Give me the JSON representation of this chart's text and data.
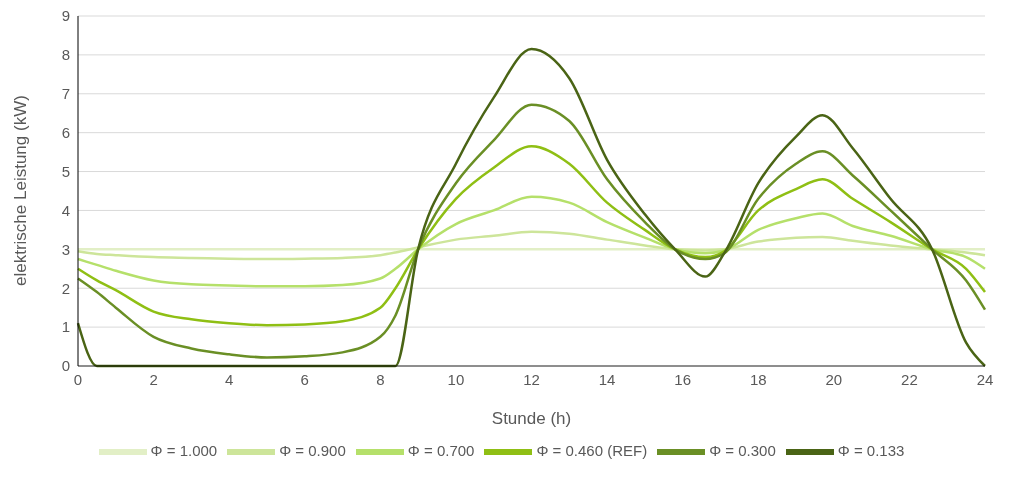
{
  "chart_data": {
    "type": "line",
    "xlabel": "Stunde (h)",
    "ylabel": "elektrische Leistung (kW)",
    "x": [
      0,
      0.5,
      1,
      2,
      3,
      4,
      5,
      6,
      7,
      8,
      8.4,
      9,
      10,
      11,
      12,
      13,
      14,
      15,
      15.8,
      16.6,
      17.1,
      18,
      19,
      19.7,
      20.5,
      21.5,
      22.6,
      23.5,
      24
    ],
    "xlim": [
      0,
      24
    ],
    "xticks": [
      0,
      2,
      4,
      6,
      8,
      10,
      12,
      14,
      16,
      18,
      20,
      22,
      24
    ],
    "ylim": [
      0,
      9
    ],
    "yticks": [
      0,
      1,
      2,
      3,
      4,
      5,
      6,
      7,
      8,
      9
    ],
    "grid": "y",
    "legend": "bottom",
    "marker": "none",
    "line_style": "solid",
    "series": [
      {
        "name": "Φ = 1.000",
        "color": "#e2efc6",
        "values": [
          3,
          3,
          3,
          3,
          3,
          3,
          3,
          3,
          3,
          3,
          3,
          3,
          3,
          3,
          3,
          3,
          3,
          3,
          3,
          3,
          3,
          3,
          3,
          3,
          3,
          3,
          3,
          3,
          3
        ]
      },
      {
        "name": "Φ = 0.900",
        "color": "#cde59a",
        "values": [
          2.95,
          2.88,
          2.85,
          2.8,
          2.78,
          2.76,
          2.75,
          2.76,
          2.78,
          2.85,
          2.92,
          3.05,
          3.25,
          3.35,
          3.45,
          3.4,
          3.25,
          3.1,
          3.0,
          2.97,
          3.0,
          3.2,
          3.3,
          3.32,
          3.22,
          3.1,
          3.0,
          2.92,
          2.85
        ]
      },
      {
        "name": "Φ = 0.700",
        "color": "#b5e06a",
        "values": [
          2.75,
          2.6,
          2.45,
          2.2,
          2.1,
          2.07,
          2.05,
          2.05,
          2.08,
          2.25,
          2.5,
          3.0,
          3.65,
          4.0,
          4.35,
          4.2,
          3.7,
          3.3,
          3.0,
          2.9,
          2.97,
          3.5,
          3.8,
          3.92,
          3.6,
          3.35,
          3.0,
          2.8,
          2.5
        ]
      },
      {
        "name": "Φ = 0.460 (REF)",
        "color": "#8fbf14",
        "values": [
          2.5,
          2.2,
          1.95,
          1.4,
          1.2,
          1.1,
          1.05,
          1.07,
          1.15,
          1.5,
          2.0,
          3.0,
          4.3,
          5.1,
          5.65,
          5.2,
          4.2,
          3.5,
          3.0,
          2.8,
          2.95,
          4.0,
          4.55,
          4.8,
          4.3,
          3.7,
          3.0,
          2.5,
          1.9
        ]
      },
      {
        "name": "Φ = 0.300",
        "color": "#6a8f25",
        "values": [
          2.25,
          1.9,
          1.5,
          0.75,
          0.45,
          0.3,
          0.22,
          0.25,
          0.35,
          0.75,
          1.3,
          3.0,
          4.7,
          5.8,
          6.72,
          6.3,
          4.8,
          3.7,
          3.0,
          2.75,
          2.9,
          4.3,
          5.2,
          5.52,
          4.9,
          4.0,
          3.0,
          2.2,
          1.45
        ]
      },
      {
        "name": "Φ = 0.133",
        "color": "#4a6415",
        "values": [
          1.1,
          0,
          0,
          0,
          0,
          0,
          0,
          0,
          0,
          0,
          0,
          3.0,
          5.2,
          6.9,
          8.15,
          7.4,
          5.3,
          3.9,
          3.0,
          2.3,
          2.9,
          4.7,
          5.9,
          6.45,
          5.6,
          4.3,
          3.0,
          0.6,
          0
        ]
      }
    ]
  }
}
